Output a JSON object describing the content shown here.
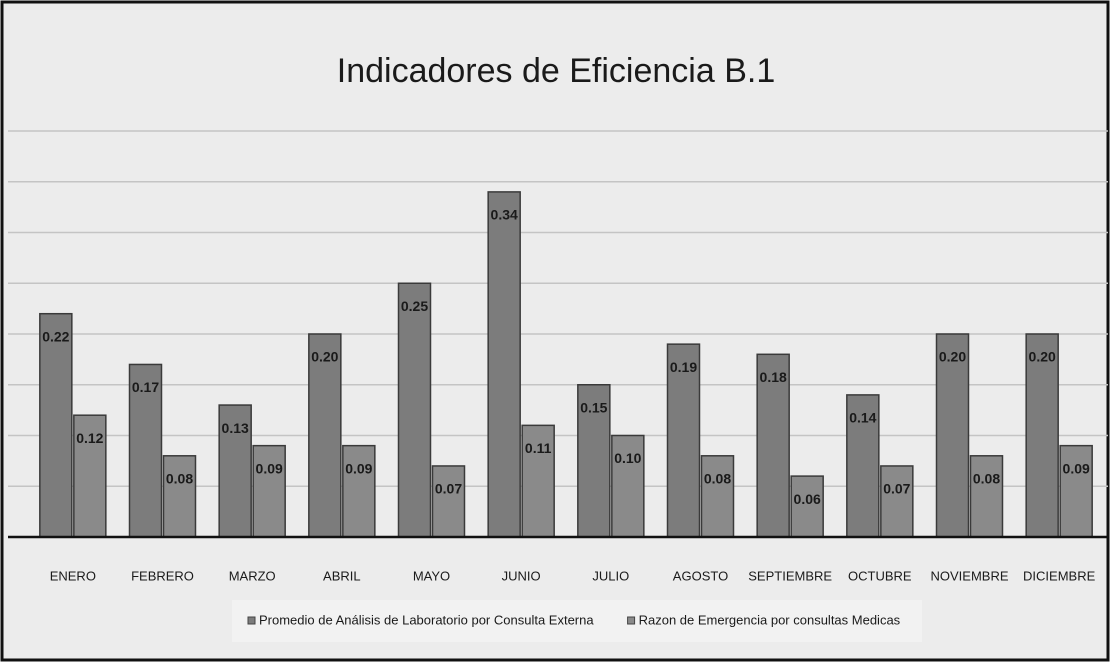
{
  "chart_data": {
    "type": "bar",
    "title": "Indicadores de Eficiencia B.1",
    "categories": [
      "ENERO",
      "FEBRERO",
      "MARZO",
      "ABRIL",
      "MAYO",
      "JUNIO",
      "JULIO",
      "AGOSTO",
      "SEPTIEMBRE",
      "OCTUBRE",
      "NOVIEMBRE",
      "DICIEMBRE"
    ],
    "series": [
      {
        "name": "Promedio de Análisis de Laboratorio por Consulta Externa",
        "color": "#7c7c7c",
        "values": [
          0.22,
          0.17,
          0.13,
          0.2,
          0.25,
          0.34,
          0.15,
          0.19,
          0.18,
          0.14,
          0.2,
          0.2
        ],
        "value_labels": [
          "0.22",
          "0.17",
          "0.13",
          "0.20",
          "0.25",
          "0.34",
          "0.15",
          "0.19",
          "0.18",
          "0.14",
          "0.20",
          "0.20"
        ]
      },
      {
        "name": "Razon de Emergencia por consultas Medicas",
        "color": "#8a8a8a",
        "values": [
          0.12,
          0.08,
          0.09,
          0.09,
          0.07,
          0.11,
          0.1,
          0.08,
          0.06,
          0.07,
          0.08,
          0.09
        ],
        "value_labels": [
          "0.12",
          "0.08",
          "0.09",
          "0.09",
          "0.07",
          "0.11",
          "0.10",
          "0.08",
          "0.06",
          "0.07",
          "0.08",
          "0.09"
        ]
      }
    ],
    "ylim": [
      0,
      0.4
    ],
    "yticks": [
      0,
      0.05,
      0.1,
      0.15,
      0.2,
      0.25,
      0.3,
      0.35,
      0.4
    ],
    "grid": true
  }
}
